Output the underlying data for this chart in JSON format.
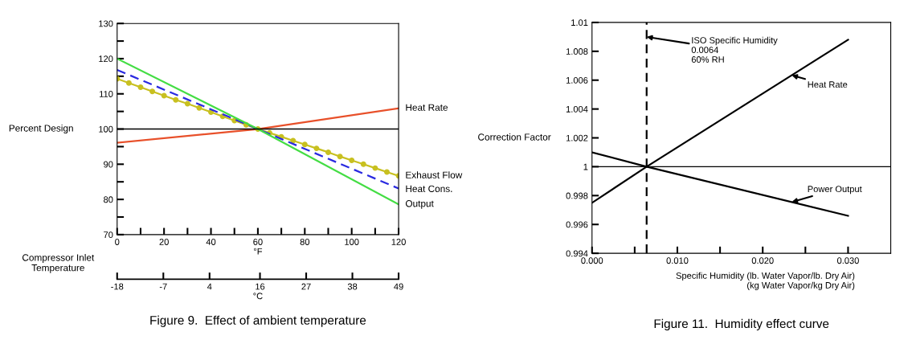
{
  "chart_data": [
    {
      "type": "line",
      "title": "Figure 9.  Effect of ambient temperature",
      "ylabel": "Percent Design",
      "xlabel": "°F",
      "x2label": "°C",
      "xlim": [
        0,
        120
      ],
      "xticks": [
        0,
        {
          "value": 10,
          "label": null
        },
        20,
        {
          "value": 30,
          "label": null
        },
        40,
        {
          "value": 50,
          "label": null
        },
        60,
        {
          "value": 70,
          "label": null
        },
        80,
        {
          "value": 90,
          "label": null
        },
        100,
        {
          "value": 110,
          "label": null
        },
        120
      ],
      "x2lim": [
        -18,
        49
      ],
      "x2ticks": [
        -18,
        -7,
        4,
        16,
        27,
        38,
        49
      ],
      "ylim": [
        70,
        130
      ],
      "yticks": [
        70,
        {
          "value": 75,
          "label": null
        },
        80,
        {
          "value": 85,
          "label": null
        },
        90,
        {
          "value": 95,
          "label": null
        },
        100,
        {
          "value": 105,
          "label": null
        },
        110,
        {
          "value": 115,
          "label": null
        },
        120,
        {
          "value": 125,
          "label": null
        },
        130
      ],
      "grid": false,
      "ref_lines": [
        {
          "axis": "y",
          "value": 100,
          "color": "#000000"
        }
      ],
      "annotations": [
        "Compressor Inlet Temperature"
      ],
      "series": [
        {
          "name": "Heat Rate",
          "color": "#e8502a",
          "x": [
            0,
            60,
            120
          ],
          "values": [
            96.1,
            100,
            105.9
          ]
        },
        {
          "name": "Exhaust Flow",
          "color": "#c8c020",
          "marker": "circle",
          "x": [
            0,
            5,
            10,
            15,
            20,
            25,
            30,
            35,
            40,
            45,
            50,
            55,
            60,
            65,
            70,
            75,
            80,
            85,
            90,
            95,
            100,
            105,
            110,
            115,
            120
          ],
          "values": [
            114.3,
            113.1,
            111.9,
            110.7,
            109.5,
            108.3,
            107.2,
            106.0,
            104.8,
            103.6,
            102.4,
            101.2,
            100.0,
            98.9,
            97.8,
            96.7,
            95.6,
            94.5,
            93.4,
            92.2,
            91.1,
            90.0,
            88.9,
            87.8,
            86.7
          ]
        },
        {
          "name": "Heat Cons.",
          "color": "#2a2ae0",
          "line_style": "dashed",
          "x": [
            0,
            60,
            120
          ],
          "values": [
            116.8,
            100,
            83.1
          ]
        },
        {
          "name": "Output",
          "color": "#44dd44",
          "x": [
            0,
            60,
            120
          ],
          "values": [
            120,
            100,
            78.6
          ]
        }
      ]
    },
    {
      "type": "line",
      "title": "Figure 11.  Humidity effect curve",
      "ylabel": "Correction Factor",
      "xlabel": "Specific Humidity (lb. Water Vapor/lb. Dry Air)\n(kg Water Vapor/kg Dry Air)",
      "xlim": [
        0,
        0.035
      ],
      "xticks": [
        {
          "value": 0,
          "label": "0.000"
        },
        {
          "value": 0.005,
          "label": null
        },
        {
          "value": 0.01,
          "label": "0.010"
        },
        {
          "value": 0.015,
          "label": null
        },
        {
          "value": 0.02,
          "label": "0.020"
        },
        {
          "value": 0.025,
          "label": null
        },
        {
          "value": 0.03,
          "label": "0.030"
        }
      ],
      "ylim": [
        0.994,
        1.01
      ],
      "yticks": [
        0.994,
        0.996,
        0.998,
        {
          "value": 1.0,
          "label": "1"
        },
        1.002,
        1.004,
        1.006,
        1.008,
        1.01
      ],
      "grid": false,
      "ref_lines": [
        {
          "axis": "y",
          "value": 1.0,
          "color": "#000000"
        },
        {
          "axis": "x",
          "value": 0.0064,
          "color": "#000000",
          "line_style": "dashed"
        }
      ],
      "annotations": [
        {
          "text": "ISO Specific Humidity\n0.0064\n60% RH",
          "x": 0.0064,
          "y": 1.009
        }
      ],
      "series": [
        {
          "name": "Heat Rate",
          "color": "#000000",
          "x": [
            0,
            0.0064,
            0.03
          ],
          "values": [
            0.9975,
            1.0,
            1.0088
          ]
        },
        {
          "name": "Power Output",
          "color": "#000000",
          "x": [
            0,
            0.0064,
            0.03
          ],
          "values": [
            1.001,
            1.0,
            0.9966
          ]
        }
      ]
    }
  ]
}
